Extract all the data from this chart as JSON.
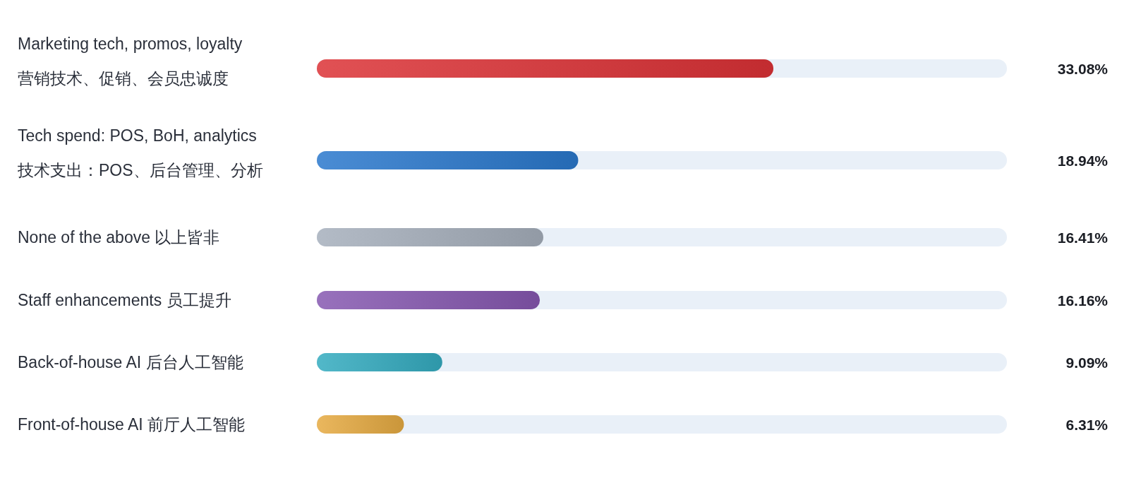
{
  "chart_data": {
    "type": "bar",
    "orientation": "horizontal",
    "xlim": [
      0,
      50
    ],
    "data_labels": true,
    "value_labels": [
      "33.08%",
      "18.94%",
      "16.41%",
      "16.16%",
      "9.09%",
      "6.31%"
    ],
    "categories": [
      "Marketing tech, promos, loyalty\n营销技术、促销、会员忠诚度",
      "Tech spend: POS, BoH, analytics\n技术支出：POS、后台管理、分析",
      "None of the above  以上皆非",
      "Staff enhancements  员工提升",
      "Back-of-house AI  后台人工智能",
      "Front-of-house AI  前厅人工智能"
    ],
    "values": [
      33.08,
      18.94,
      16.41,
      16.16,
      9.09,
      6.31
    ],
    "colors": [
      "#dc3236",
      "#2a78cc",
      "#a6afbc",
      "#8658b0",
      "#34acc0",
      "#e6aa42"
    ]
  }
}
